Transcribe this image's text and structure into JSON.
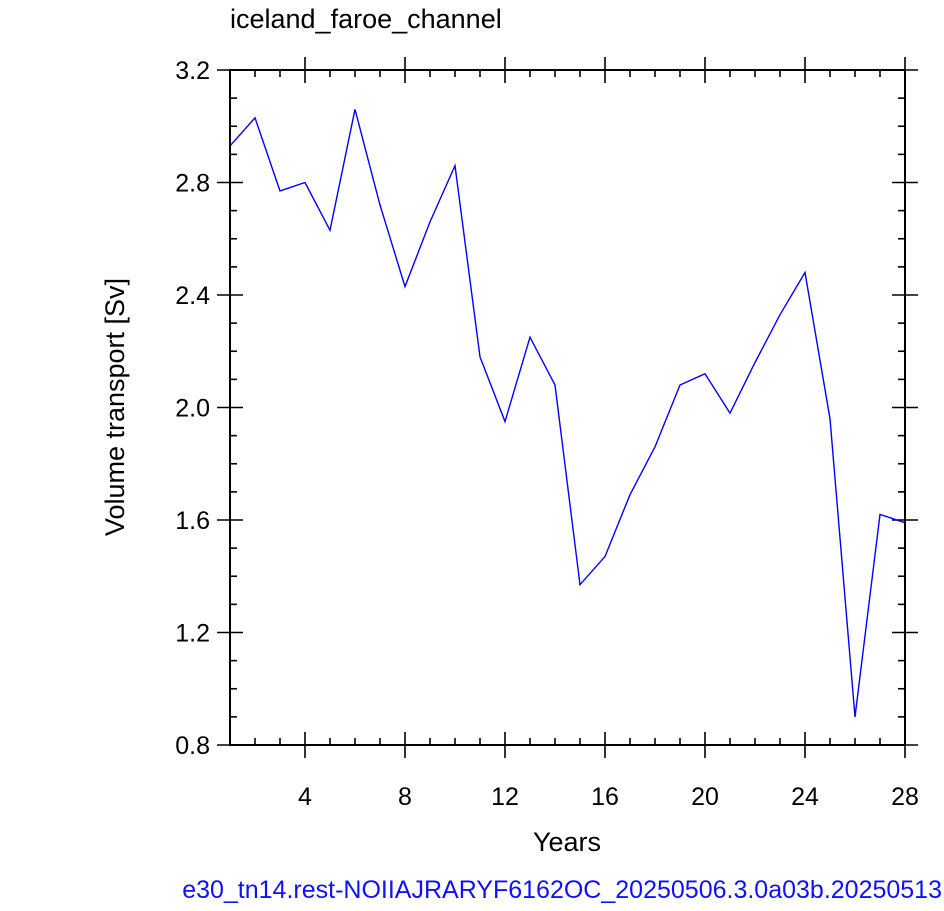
{
  "chart_data": {
    "type": "line",
    "title": "iceland_faroe_channel",
    "xlabel": "Years",
    "ylabel": "Volume transport [Sv]",
    "xlim": [
      1,
      28
    ],
    "ylim": [
      0.8,
      3.2
    ],
    "x_ticks": [
      4,
      8,
      12,
      16,
      20,
      24,
      28
    ],
    "x_tick_labels": [
      "4",
      "8",
      "12",
      "16",
      "20",
      "24",
      "28"
    ],
    "y_ticks": [
      0.8,
      1.2,
      1.6,
      2.0,
      2.4,
      2.8,
      3.2
    ],
    "y_tick_labels": [
      "0.8",
      "1.2",
      "1.6",
      "2.0",
      "2.4",
      "2.8",
      "3.2"
    ],
    "x_minor_step": 1,
    "y_minor_step": 0.1,
    "grid": false,
    "series": [
      {
        "color": "#0000ff",
        "x": [
          1,
          2,
          3,
          4,
          5,
          6,
          7,
          8,
          9,
          10,
          11,
          12,
          13,
          14,
          15,
          16,
          17,
          18,
          19,
          20,
          21,
          22,
          23,
          24,
          25,
          26,
          27,
          28
        ],
        "y": [
          2.93,
          3.03,
          2.77,
          2.8,
          2.63,
          3.06,
          2.72,
          2.43,
          2.66,
          2.86,
          2.18,
          1.95,
          2.25,
          2.08,
          1.37,
          1.47,
          1.69,
          1.86,
          2.08,
          2.12,
          1.98,
          2.16,
          2.33,
          2.48,
          1.96,
          0.9,
          1.62,
          1.59
        ]
      }
    ]
  },
  "footer_text": "e30_tn14.rest-NOIIAJRARYF6162OC_20250506.3.0a03b.20250513"
}
